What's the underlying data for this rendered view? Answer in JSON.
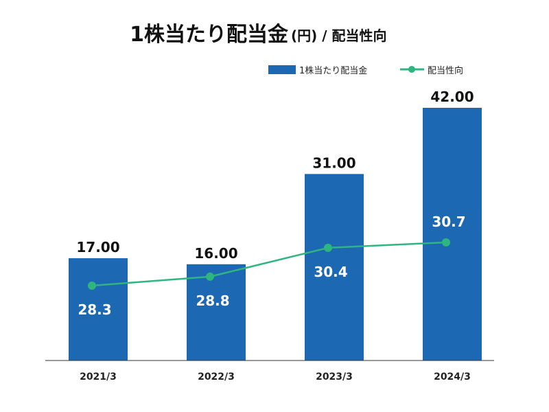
{
  "chart_data": {
    "type": "bar",
    "title": "1株当たり配当金",
    "title_suffix": "(円) / 配当性向",
    "categories": [
      "2021/3",
      "2022/3",
      "2023/3",
      "2024/3"
    ],
    "series": [
      {
        "name": "1株当たり配当金",
        "type": "bar",
        "values": [
          17.0,
          16.0,
          31.0,
          42.0
        ],
        "labels": [
          "17.00",
          "16.00",
          "31.00",
          "42.00"
        ],
        "color": "#1c68b3",
        "ylim": [
          0,
          42
        ]
      },
      {
        "name": "配当性向",
        "type": "line",
        "values": [
          28.3,
          28.8,
          30.4,
          30.7
        ],
        "labels": [
          "28.3",
          "28.8",
          "30.4",
          "30.7"
        ],
        "color": "#2fb57f"
      }
    ],
    "legend": "top-right",
    "grid": false
  }
}
